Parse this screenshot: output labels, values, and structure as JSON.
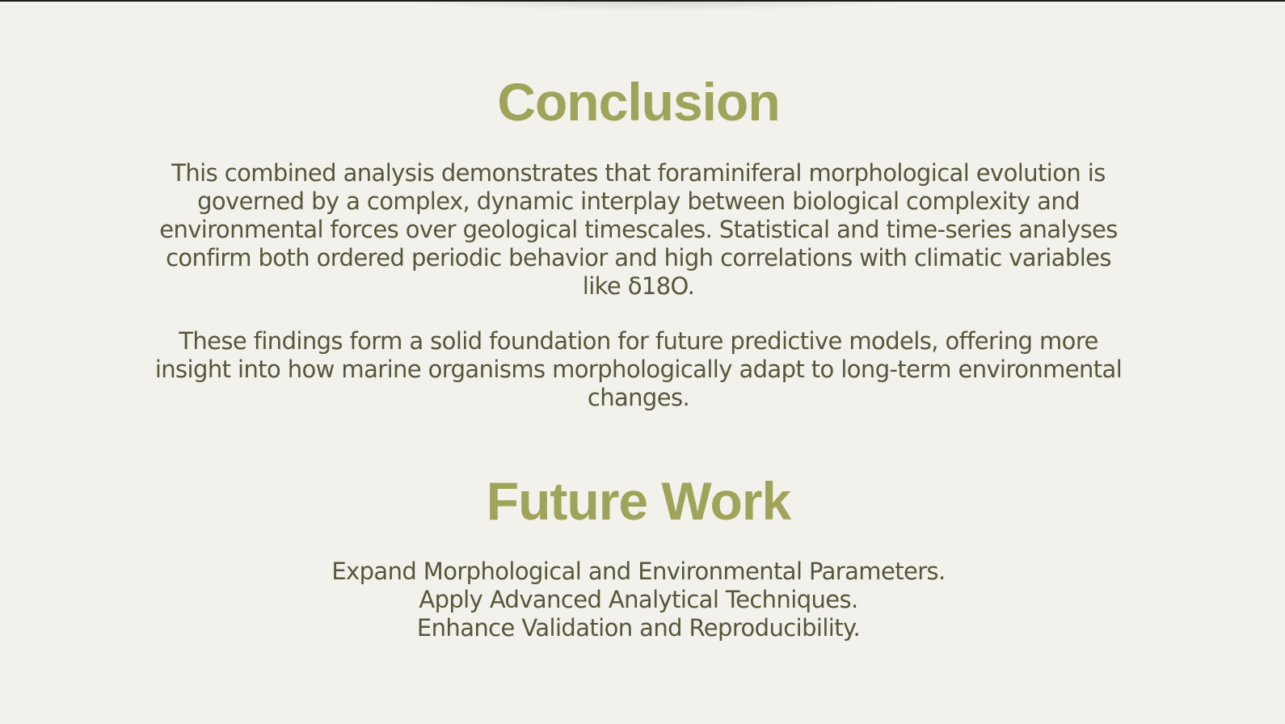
{
  "colors": {
    "background": "#f2f1eb",
    "heading": "#a0a35a",
    "body_text": "#58553a"
  },
  "conclusion": {
    "title": "Conclusion",
    "paragraph_1": "This combined analysis demonstrates that foraminiferal morphological evolution is governed by a complex, dynamic interplay between biological complexity and environmental forces over geological timescales. Statistical and time-series analyses confirm both ordered periodic behavior and high correlations with climatic variables like δ18O.",
    "paragraph_2": "These findings form a solid foundation for future predictive models, offering more insight into how marine organisms morphologically adapt to long-term environmental changes."
  },
  "future_work": {
    "title": "Future Work",
    "items": [
      "Expand Morphological and Environmental Parameters.",
      "Apply Advanced Analytical Techniques.",
      "Enhance Validation and Reproducibility."
    ]
  }
}
